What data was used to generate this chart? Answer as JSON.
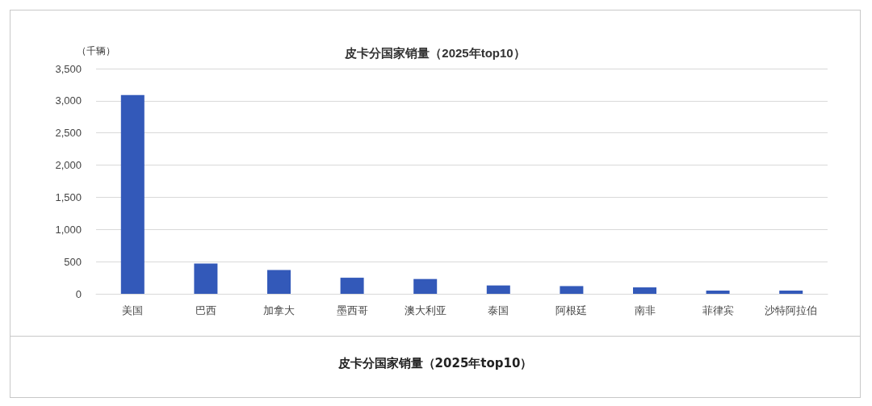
{
  "chart_data": {
    "type": "bar",
    "title": "皮卡分国家销量（2025年top10）",
    "ylabel": "（千辆）",
    "categories": [
      "美国",
      "巴西",
      "加拿大",
      "墨西哥",
      "澳大利亚",
      "泰国",
      "阿根廷",
      "南非",
      "菲律宾",
      "沙特阿拉伯"
    ],
    "values": [
      3090,
      470,
      370,
      250,
      230,
      130,
      120,
      100,
      50,
      50
    ],
    "color": "#3359b9",
    "ylim": [
      0,
      3500
    ],
    "yticks": [
      {
        "value": 0,
        "label": "0"
      },
      {
        "value": 500,
        "label": "500"
      },
      {
        "value": 1000,
        "label": "1,000"
      },
      {
        "value": 1500,
        "label": "1,500"
      },
      {
        "value": 2000,
        "label": "2,000"
      },
      {
        "value": 2500,
        "label": "2,500"
      },
      {
        "value": 3000,
        "label": "3,000"
      },
      {
        "value": 3500,
        "label": "3,500"
      }
    ],
    "grid": "y",
    "annotations": [
      "皮卡分国家销量（2025年top10）"
    ]
  }
}
